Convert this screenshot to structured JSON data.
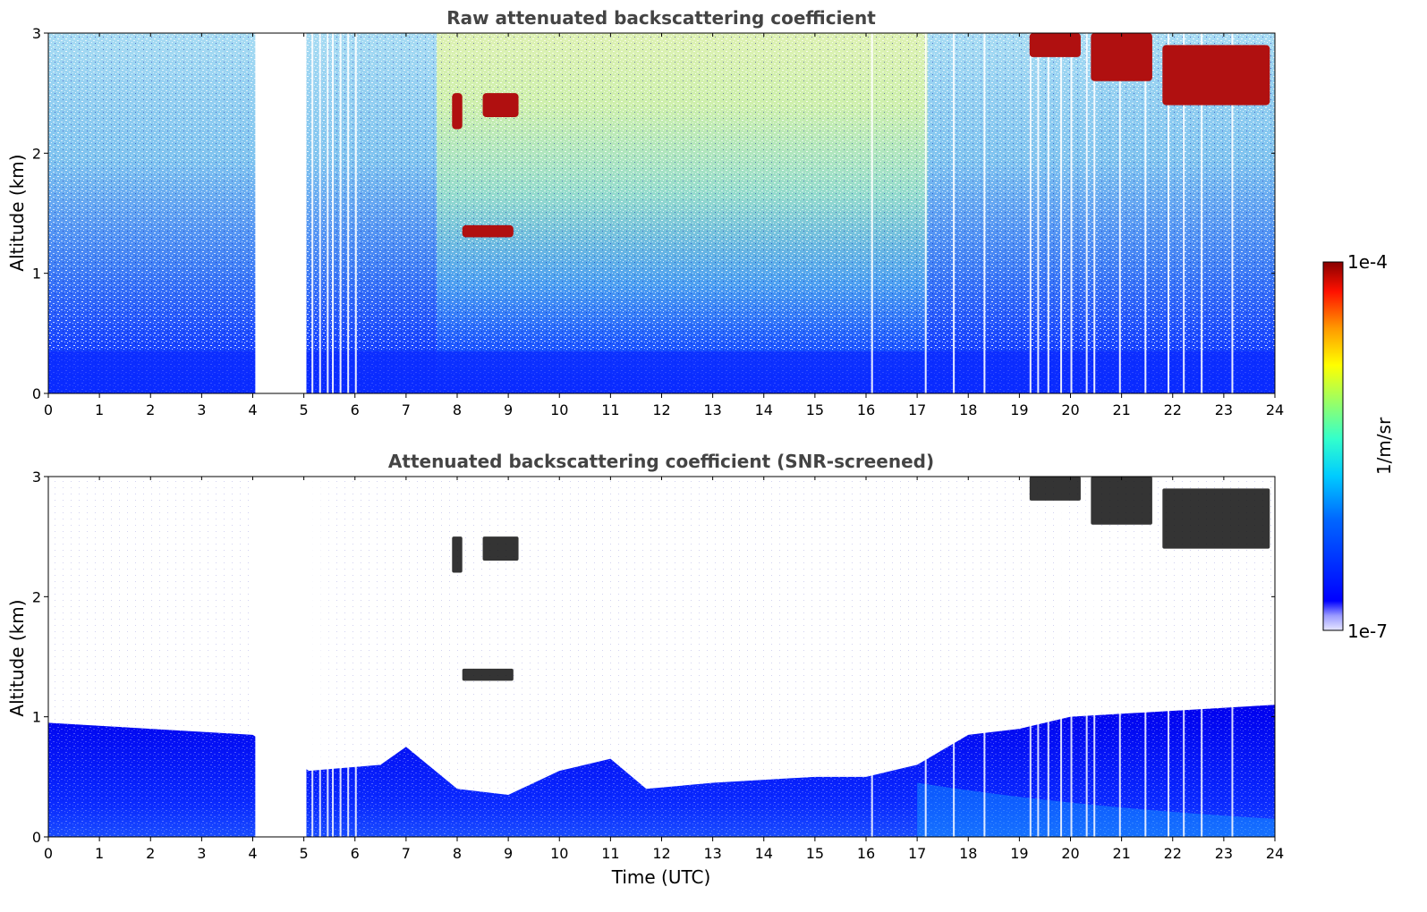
{
  "chart_data": [
    {
      "type": "heatmap",
      "title": "Raw attenuated backscattering coefficient",
      "xlabel": "",
      "ylabel": "Altitude (km)",
      "xlim": [
        0,
        24
      ],
      "ylim": [
        0,
        3
      ],
      "xticks": [
        "0",
        "1",
        "2",
        "3",
        "4",
        "5",
        "6",
        "7",
        "8",
        "9",
        "10",
        "11",
        "12",
        "13",
        "14",
        "15",
        "16",
        "17",
        "18",
        "19",
        "20",
        "21",
        "22",
        "23",
        "24"
      ],
      "yticks": [
        "0",
        "1",
        "2",
        "3"
      ],
      "data_gap_hours": [
        [
          4.05,
          5.05
        ]
      ],
      "cloud_layers": [
        {
          "t_start": 7.9,
          "t_end": 8.1,
          "alt_km": [
            2.2,
            2.5
          ]
        },
        {
          "t_start": 8.5,
          "t_end": 9.2,
          "alt_km": [
            2.3,
            2.5
          ]
        },
        {
          "t_start": 8.1,
          "t_end": 9.1,
          "alt_km": [
            1.3,
            1.4
          ]
        },
        {
          "t_start": 19.2,
          "t_end": 20.2,
          "alt_km": [
            2.8,
            3.0
          ]
        },
        {
          "t_start": 20.4,
          "t_end": 21.6,
          "alt_km": [
            2.6,
            3.0
          ]
        },
        {
          "t_start": 21.8,
          "t_end": 23.9,
          "alt_km": [
            2.4,
            2.9
          ]
        }
      ]
    },
    {
      "type": "heatmap",
      "title": "Attenuated backscattering coefficient (SNR-screened)",
      "xlabel": "Time (UTC)",
      "ylabel": "Altitude (km)",
      "xlim": [
        0,
        24
      ],
      "ylim": [
        0,
        3
      ],
      "xticks": [
        "0",
        "1",
        "2",
        "3",
        "4",
        "5",
        "6",
        "7",
        "8",
        "9",
        "10",
        "11",
        "12",
        "13",
        "14",
        "15",
        "16",
        "17",
        "18",
        "19",
        "20",
        "21",
        "22",
        "23",
        "24"
      ],
      "yticks": [
        "0",
        "1",
        "2",
        "3"
      ],
      "data_gap_hours": [
        [
          4.05,
          5.05
        ]
      ],
      "boundary_layer_top_km": [
        {
          "t": 0,
          "alt": 0.95
        },
        {
          "t": 2,
          "alt": 0.9
        },
        {
          "t": 4,
          "alt": 0.85
        },
        {
          "t": 5.1,
          "alt": 0.55
        },
        {
          "t": 6.5,
          "alt": 0.6
        },
        {
          "t": 7,
          "alt": 0.75
        },
        {
          "t": 8,
          "alt": 0.4
        },
        {
          "t": 9,
          "alt": 0.35
        },
        {
          "t": 10,
          "alt": 0.55
        },
        {
          "t": 11,
          "alt": 0.65
        },
        {
          "t": 11.7,
          "alt": 0.4
        },
        {
          "t": 13,
          "alt": 0.45
        },
        {
          "t": 15,
          "alt": 0.5
        },
        {
          "t": 16,
          "alt": 0.5
        },
        {
          "t": 17,
          "alt": 0.6
        },
        {
          "t": 18,
          "alt": 0.85
        },
        {
          "t": 19,
          "alt": 0.9
        },
        {
          "t": 20,
          "alt": 1.0
        },
        {
          "t": 22,
          "alt": 1.05
        },
        {
          "t": 24,
          "alt": 1.1
        }
      ]
    }
  ],
  "colorbar": {
    "label": "1/m/sr",
    "max_label": "1e-4",
    "min_label": "1e-7",
    "colormap": "jet"
  }
}
